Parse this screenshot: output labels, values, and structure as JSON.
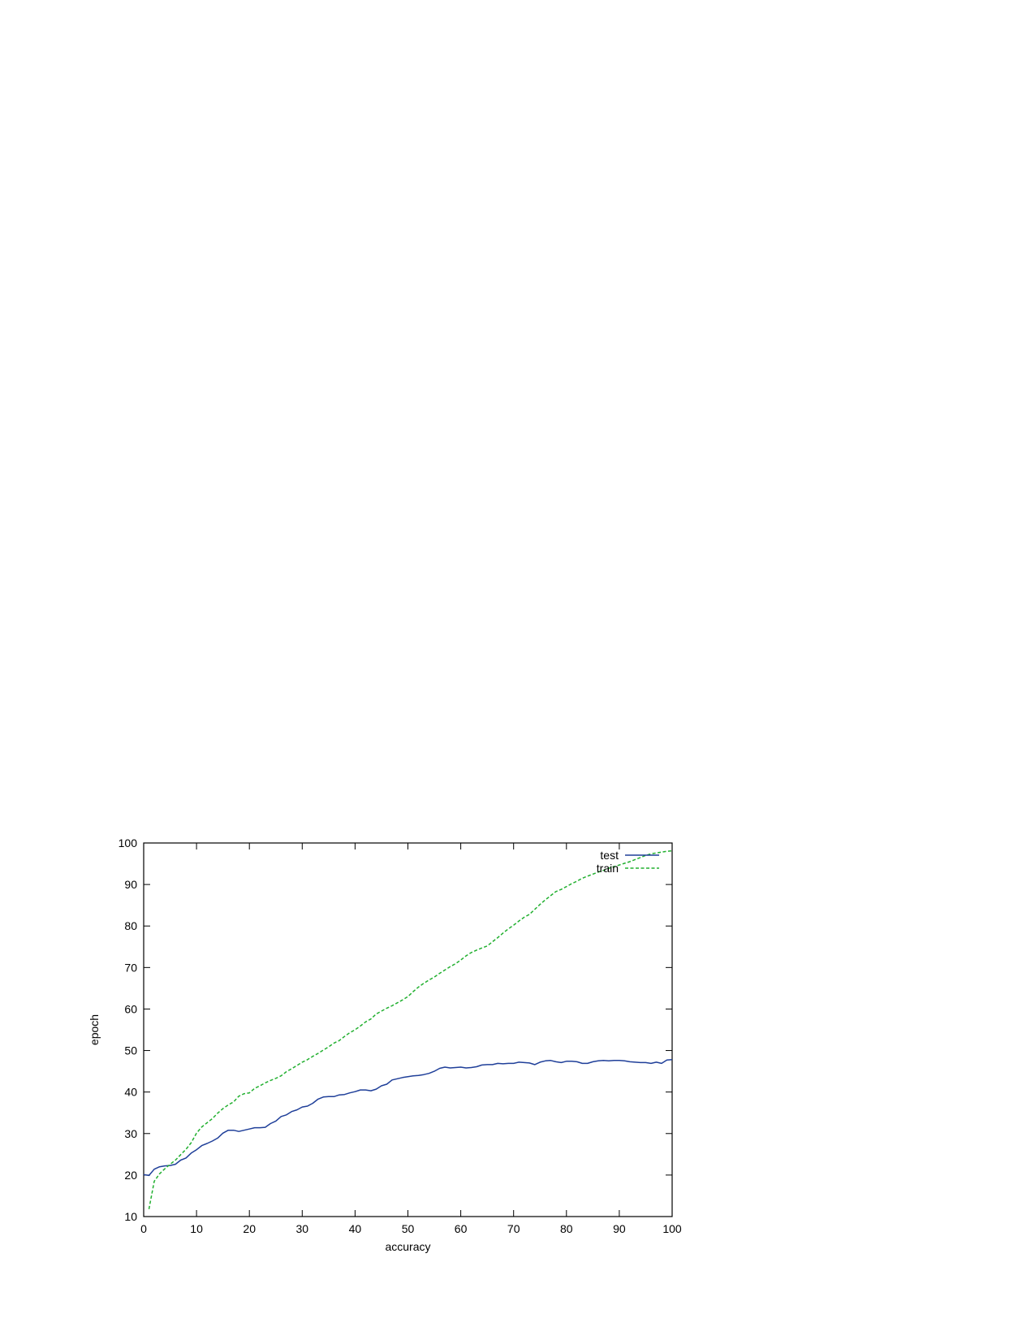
{
  "chart_data": {
    "type": "line",
    "xlabel": "accuracy",
    "ylabel": "epoch",
    "xlim": [
      0,
      100
    ],
    "ylim": [
      10,
      100
    ],
    "x_ticks": [
      0,
      10,
      20,
      30,
      40,
      50,
      60,
      70,
      80,
      90,
      100
    ],
    "y_ticks": [
      10,
      20,
      30,
      40,
      50,
      60,
      70,
      80,
      90,
      100
    ],
    "grid": false,
    "legend_position": "top-right",
    "series": [
      {
        "name": "test",
        "color": "#1f3f99",
        "style": "solid",
        "x": [
          0,
          1,
          2,
          3,
          4,
          5,
          6,
          7,
          8,
          9,
          10,
          11,
          12,
          13,
          14,
          15,
          16,
          17,
          18,
          19,
          20,
          21,
          22,
          23,
          24,
          25,
          26,
          27,
          28,
          29,
          30,
          31,
          32,
          33,
          34,
          35,
          36,
          37,
          38,
          39,
          40,
          41,
          42,
          43,
          44,
          45,
          46,
          47,
          48,
          49,
          50,
          51,
          52,
          53,
          54,
          55,
          56,
          57,
          58,
          59,
          60,
          61,
          62,
          63,
          64,
          65,
          66,
          67,
          68,
          69,
          70,
          71,
          72,
          73,
          74,
          75,
          76,
          77,
          78,
          79,
          80,
          81,
          82,
          83,
          84,
          85,
          86,
          87,
          88,
          89,
          90,
          91,
          92,
          93,
          94,
          95,
          96,
          97,
          98,
          99,
          100
        ],
        "values": [
          20.1,
          19.9,
          21.4,
          22.0,
          22.2,
          22.3,
          22.6,
          23.6,
          24.1,
          25.3,
          26.1,
          27.1,
          27.6,
          28.2,
          28.9,
          30.1,
          30.8,
          30.8,
          30.5,
          30.8,
          31.1,
          31.4,
          31.4,
          31.5,
          32.4,
          33.0,
          34.1,
          34.5,
          35.3,
          35.7,
          36.4,
          36.6,
          37.3,
          38.3,
          38.8,
          38.9,
          38.9,
          39.3,
          39.4,
          39.8,
          40.1,
          40.5,
          40.5,
          40.3,
          40.7,
          41.5,
          41.9,
          42.9,
          43.2,
          43.5,
          43.7,
          43.9,
          44.0,
          44.2,
          44.5,
          45.0,
          45.7,
          46.0,
          45.8,
          45.9,
          46.0,
          45.8,
          45.9,
          46.1,
          46.5,
          46.6,
          46.6,
          46.9,
          46.8,
          46.9,
          46.9,
          47.2,
          47.1,
          47.0,
          46.6,
          47.2,
          47.5,
          47.6,
          47.3,
          47.1,
          47.4,
          47.4,
          47.3,
          46.9,
          46.9,
          47.3,
          47.5,
          47.6,
          47.5,
          47.6,
          47.6,
          47.5,
          47.3,
          47.2,
          47.1,
          47.1,
          46.9,
          47.2,
          46.9,
          47.7,
          47.8
        ]
      },
      {
        "name": "train",
        "color": "#22b030",
        "style": "dashed",
        "x": [
          1,
          2,
          3,
          4,
          5,
          6,
          7,
          8,
          9,
          10,
          11,
          12,
          13,
          14,
          15,
          16,
          17,
          18,
          19,
          20,
          21,
          22,
          23,
          24,
          25,
          26,
          27,
          28,
          29,
          30,
          31,
          32,
          33,
          34,
          35,
          36,
          37,
          38,
          39,
          40,
          41,
          42,
          43,
          44,
          45,
          46,
          47,
          48,
          49,
          50,
          51,
          52,
          53,
          54,
          55,
          56,
          57,
          58,
          59,
          60,
          61,
          62,
          63,
          64,
          65,
          66,
          67,
          68,
          69,
          70,
          71,
          72,
          73,
          74,
          75,
          76,
          77,
          78,
          79,
          80,
          81,
          82,
          83,
          84,
          85,
          86,
          87,
          88,
          89,
          90,
          91,
          92,
          93,
          94,
          95,
          96,
          97,
          98,
          99,
          100
        ],
        "values": [
          11.8,
          18.5,
          20.3,
          21.5,
          22.6,
          23.6,
          24.9,
          26.2,
          27.8,
          30.1,
          31.6,
          32.6,
          33.6,
          34.9,
          36.0,
          36.9,
          37.6,
          39.0,
          39.6,
          39.8,
          40.9,
          41.5,
          42.2,
          42.8,
          43.3,
          43.9,
          44.9,
          45.6,
          46.4,
          47.2,
          47.8,
          48.6,
          49.3,
          50.1,
          50.9,
          51.8,
          52.4,
          53.4,
          54.3,
          55.0,
          55.9,
          56.9,
          57.6,
          58.8,
          59.5,
          60.2,
          60.8,
          61.5,
          62.2,
          63.0,
          64.2,
          65.3,
          66.2,
          67.0,
          67.7,
          68.6,
          69.4,
          70.2,
          70.9,
          71.8,
          72.8,
          73.6,
          74.2,
          74.7,
          75.2,
          76.2,
          77.2,
          78.3,
          79.3,
          80.2,
          81.2,
          82.1,
          82.8,
          84.0,
          85.2,
          86.3,
          87.3,
          88.3,
          88.8,
          89.5,
          90.2,
          90.8,
          91.5,
          92.0,
          92.5,
          93.0,
          93.4,
          93.9,
          94.3,
          94.7,
          95.1,
          95.5,
          96.0,
          96.5,
          97.0,
          97.4,
          97.6,
          97.8,
          98.0,
          98.1
        ]
      }
    ]
  }
}
